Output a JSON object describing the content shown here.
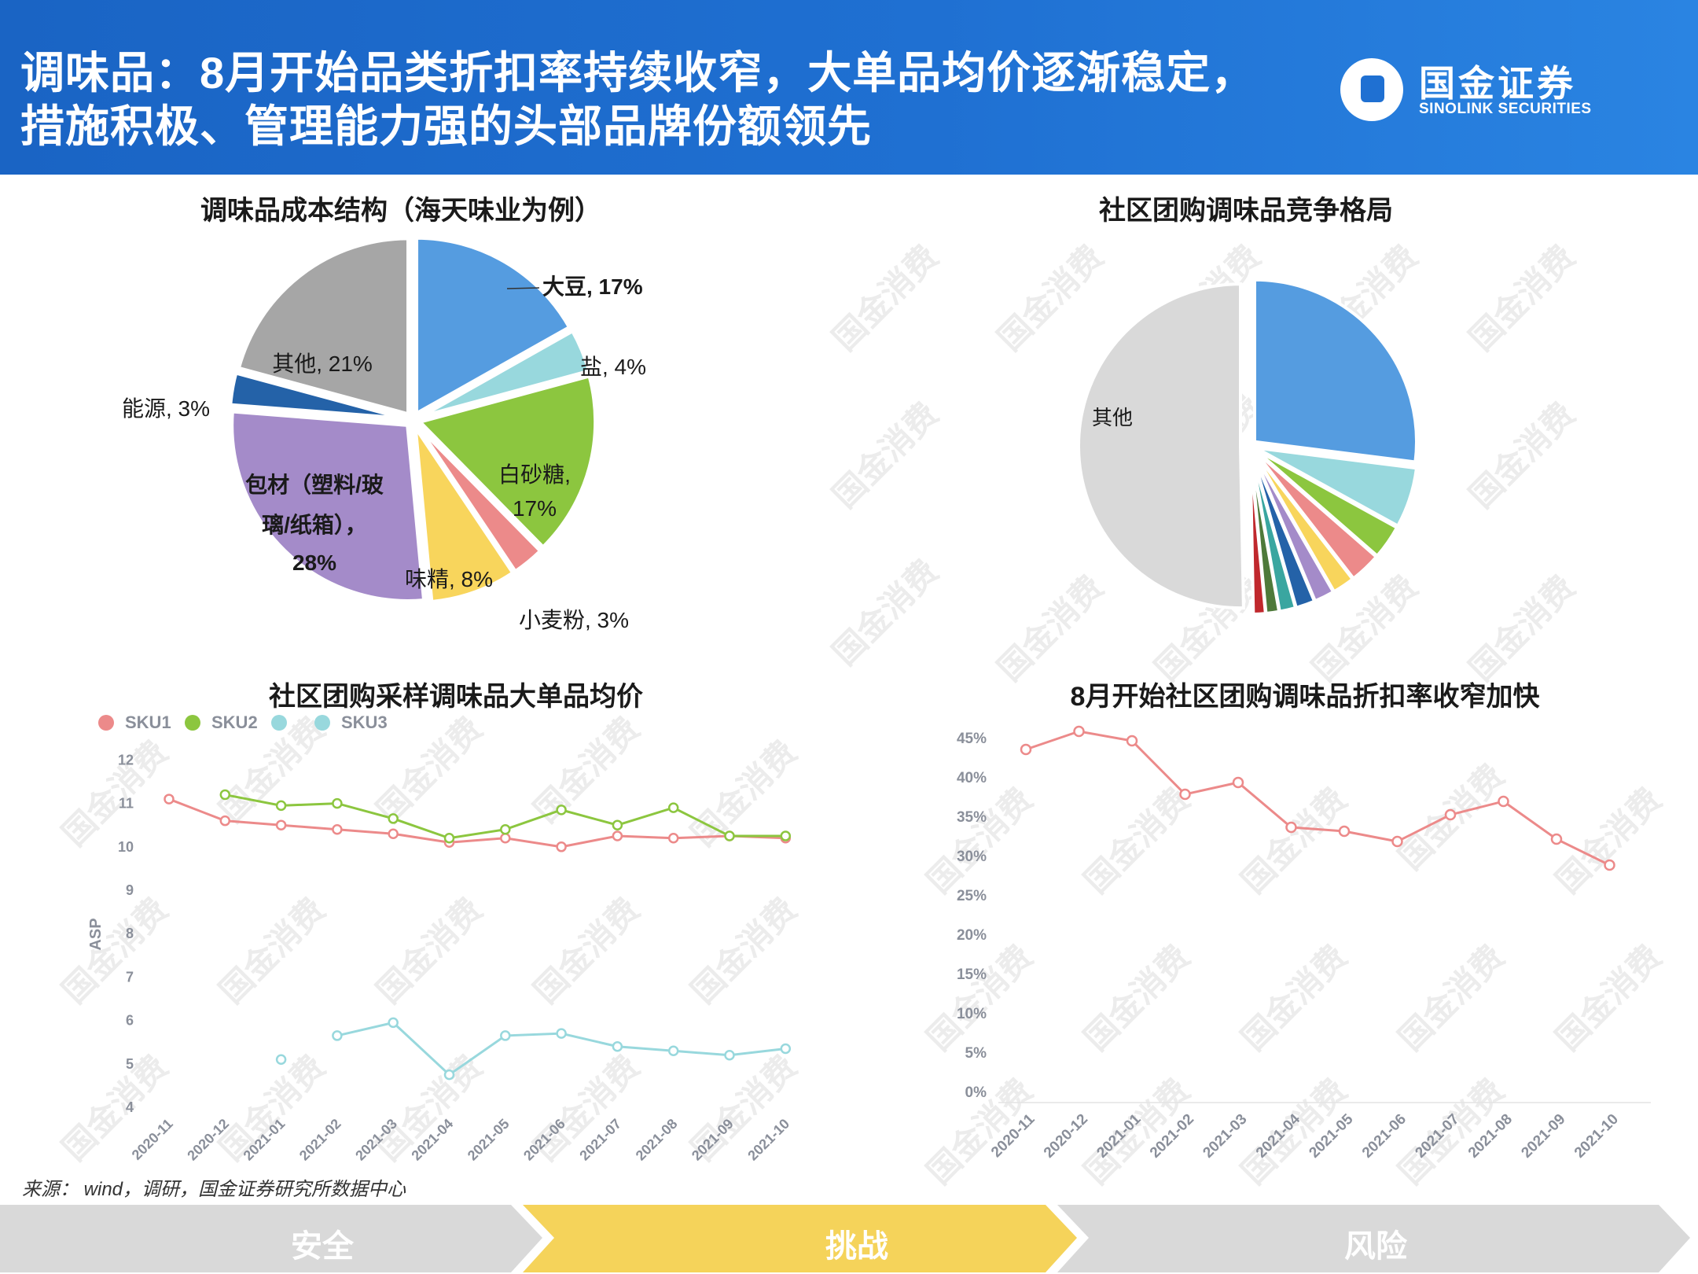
{
  "header": {
    "title_line1": "调味品：8月开始品类折扣率持续收窄，大单品均价逐渐稳定，",
    "title_line2": "措施积极、管理能力强的头部品牌份额领先",
    "logo_cn": "国金证券",
    "logo_en": "SINOLINK SECURITIES"
  },
  "watermark_text": "国金消费",
  "colors": {
    "header_blue": "#1f70d2",
    "nav_active": "#f5d35a",
    "nav_inactive": "#d9d9d9"
  },
  "chart_data": [
    {
      "type": "pie",
      "title": "调味品成本结构（海天味业为例）",
      "slices": [
        {
          "label": "大豆",
          "value": 17,
          "color": "#559ce0",
          "bold": true
        },
        {
          "label": "盐",
          "value": 4,
          "color": "#98d8dd",
          "bold": false
        },
        {
          "label": "白砂糖,",
          "value": 17,
          "color": "#8cc63f",
          "bold": false
        },
        {
          "label": "小麦粉",
          "value": 3,
          "color": "#ec8a8a",
          "bold": false
        },
        {
          "label": "味精",
          "value": 8,
          "color": "#f8d55c",
          "bold": false
        },
        {
          "label": "包材（塑料/玻璃/纸箱），",
          "value": 28,
          "color": "#a48bc9",
          "bold": true
        },
        {
          "label": "能源",
          "value": 3,
          "color": "#2462a8",
          "bold": false
        },
        {
          "label": "其他",
          "value": 21,
          "color": "#a6a6a6",
          "bold": false
        }
      ],
      "label_texts": [
        "大豆, 17%",
        "盐, 4%",
        "白砂糖,",
        "17%",
        "小麦粉, 3%",
        "味精, 8%",
        "包材（塑料/玻",
        "璃/纸箱），",
        "28%",
        "能源, 3%",
        "其他, 21%"
      ]
    },
    {
      "type": "pie",
      "title": "社区团购调味品竞争格局",
      "slices": [
        {
          "label": "",
          "value": 27.0,
          "color": "#559ce0"
        },
        {
          "label": "",
          "value": 6.0,
          "color": "#98d8dd"
        },
        {
          "label": "",
          "value": 3.4,
          "color": "#8cc63f"
        },
        {
          "label": "",
          "value": 3.1,
          "color": "#ec8a8a"
        },
        {
          "label": "",
          "value": 2.2,
          "color": "#f8d55c"
        },
        {
          "label": "",
          "value": 2.0,
          "color": "#a48bc9"
        },
        {
          "label": "",
          "value": 1.9,
          "color": "#2462a8"
        },
        {
          "label": "",
          "value": 1.6,
          "color": "#3aa6a0"
        },
        {
          "label": "",
          "value": 1.3,
          "color": "#4e7a3a"
        },
        {
          "label": "",
          "value": 1.2,
          "color": "#c0282d"
        },
        {
          "label": "其他",
          "value": 50.3,
          "color": "#d9d9d9"
        }
      ]
    },
    {
      "type": "line",
      "title": "社区团购采样调味品大单品均价",
      "ylabel": "ASP",
      "ylim": [
        4,
        12
      ],
      "yticks": [
        4,
        5,
        6,
        7,
        8,
        9,
        10,
        11,
        12
      ],
      "x": [
        "2020-11",
        "2020-12",
        "2021-01",
        "2021-02",
        "2021-03",
        "2021-04",
        "2021-05",
        "2021-06",
        "2021-07",
        "2021-08",
        "2021-09",
        "2021-10"
      ],
      "legend": [
        "SKU1",
        "SKU2",
        "",
        "SKU3"
      ],
      "series": [
        {
          "name": "SKU1",
          "color": "#ec8a8a",
          "values": [
            11.1,
            10.6,
            10.5,
            10.4,
            10.3,
            10.1,
            10.2,
            10.0,
            10.25,
            10.2,
            10.25,
            10.2
          ]
        },
        {
          "name": "SKU2",
          "color": "#8cc63f",
          "values": [
            null,
            11.2,
            10.95,
            11.0,
            10.65,
            10.2,
            10.4,
            10.85,
            10.5,
            10.9,
            10.25,
            10.25
          ]
        },
        {
          "name": "SKU3",
          "color": "#98d8dd",
          "values": [
            null,
            null,
            5.1,
            5.65,
            5.95,
            4.75,
            5.65,
            5.7,
            5.4,
            5.3,
            5.2,
            5.35
          ]
        }
      ]
    },
    {
      "type": "line",
      "title": "8月开始社区团购调味品折扣率收窄加快",
      "ylim": [
        0,
        45
      ],
      "yticks": [
        "0%",
        "5%",
        "10%",
        "15%",
        "20%",
        "25%",
        "30%",
        "35%",
        "40%",
        "45%"
      ],
      "x": [
        "2020-11",
        "2020-12",
        "2021-01",
        "2021-02",
        "2021-03",
        "2021-04",
        "2021-05",
        "2021-06",
        "2021-07",
        "2021-08",
        "2021-09",
        "2021-10"
      ],
      "series": [
        {
          "name": "",
          "color": "#ec8a8a",
          "values": [
            43.5,
            45.8,
            44.6,
            37.8,
            39.3,
            33.6,
            33.1,
            31.8,
            35.2,
            36.9,
            32.1,
            28.8
          ]
        }
      ]
    }
  ],
  "source": "来源： wind，调研，国金证券研究所数据中心",
  "nav": {
    "items": [
      "安全",
      "挑战",
      "风险"
    ],
    "active_index": 1
  }
}
